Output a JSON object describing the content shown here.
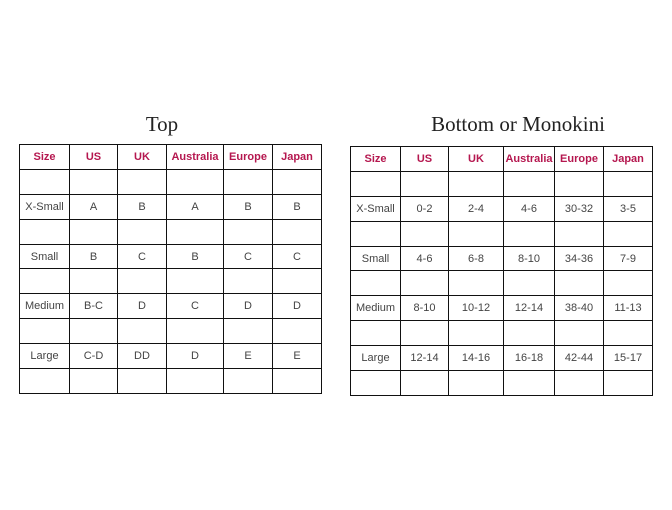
{
  "header_color": "#b5174f",
  "top": {
    "title": "Top",
    "headers": [
      "Size",
      "US",
      "UK",
      "Australia",
      "Europe",
      "Japan"
    ],
    "rows": [
      [
        "X-Small",
        "A",
        "B",
        "A",
        "B",
        "B"
      ],
      [
        "Small",
        "B",
        "C",
        "B",
        "C",
        "C"
      ],
      [
        "Medium",
        "B-C",
        "D",
        "C",
        "D",
        "D"
      ],
      [
        "Large",
        "C-D",
        "DD",
        "D",
        "E",
        "E"
      ]
    ]
  },
  "bottom": {
    "title": "Bottom or Monokini",
    "headers": [
      "Size",
      "US",
      "UK",
      "Australia",
      "Europe",
      "Japan"
    ],
    "rows": [
      [
        "X-Small",
        "0-2",
        "2-4",
        "4-6",
        "30-32",
        "3-5"
      ],
      [
        "Small",
        "4-6",
        "6-8",
        "8-10",
        "34-36",
        "7-9"
      ],
      [
        "Medium",
        "8-10",
        "10-12",
        "12-14",
        "38-40",
        "11-13"
      ],
      [
        "Large",
        "12-14",
        "14-16",
        "16-18",
        "42-44",
        "15-17"
      ]
    ]
  }
}
